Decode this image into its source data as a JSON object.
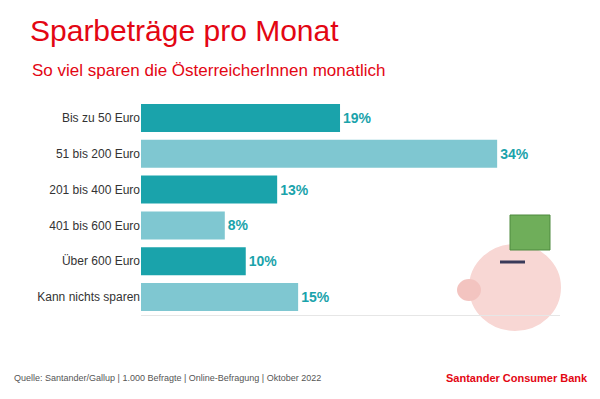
{
  "chart_data": {
    "type": "bar",
    "orientation": "horizontal",
    "title": "Sparbeträge pro Monat",
    "subtitle": "So viel sparen die ÖsterreicherInnen monatlich",
    "categories": [
      "Bis zu 50 Euro",
      "51 bis 200 Euro",
      "201 bis 400 Euro",
      "401 bis 600 Euro",
      "Über 600 Euro",
      "Kann nichts sparen"
    ],
    "values": [
      19,
      34,
      13,
      8,
      10,
      15
    ],
    "value_labels": [
      "19%",
      "34%",
      "13%",
      "8%",
      "10%",
      "15%"
    ],
    "colors": [
      "#1aa3ab",
      "#7fc7d1",
      "#1aa3ab",
      "#7fc7d1",
      "#1aa3ab",
      "#7fc7d1"
    ],
    "data_labels": true,
    "tick_labels": "y",
    "grid": false,
    "xlim": [
      0,
      40
    ],
    "annotations": [
      "Quelle: Santander/Gallup | 1.000 Befragte | Online-Befragung | Oktober 2022",
      "Santander Consumer Bank"
    ]
  }
}
